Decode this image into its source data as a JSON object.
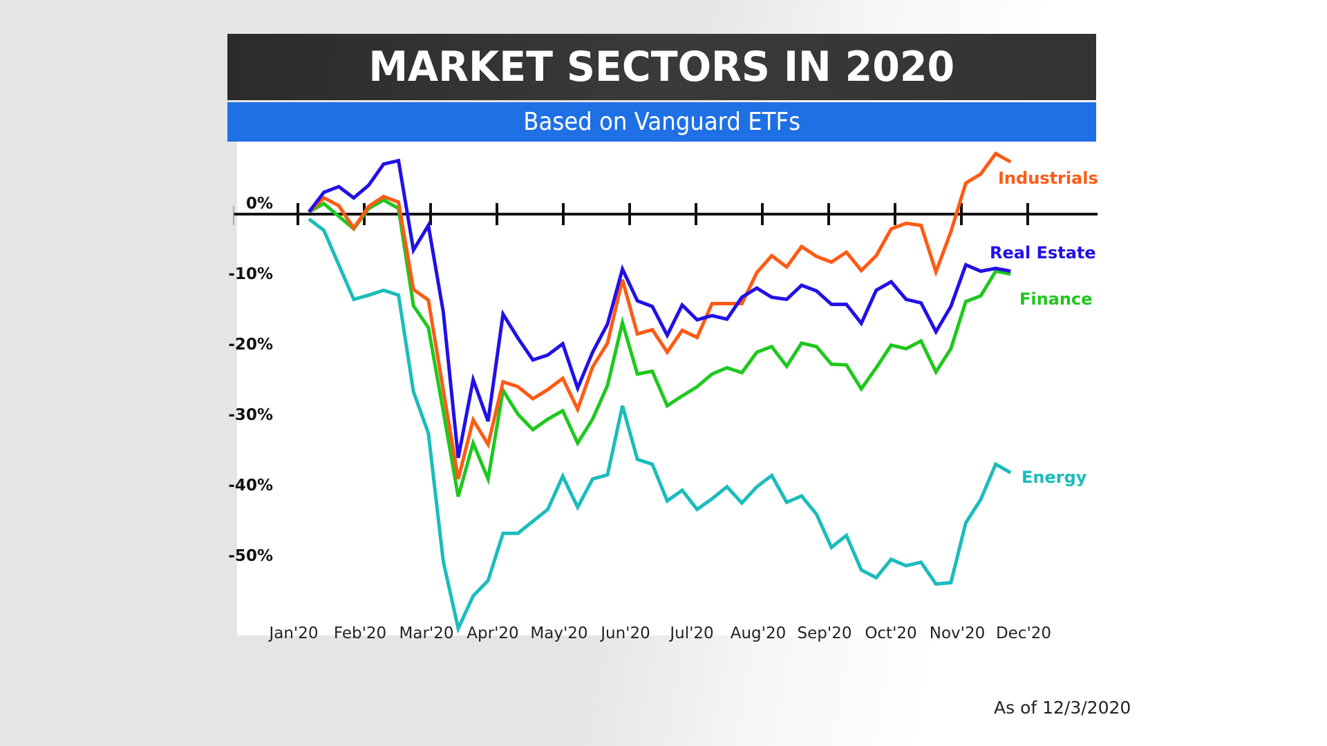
{
  "colors": {
    "title_bg": "#333333",
    "subtitle_bg": "#1f6fe5",
    "Industrials": "#ff5a14",
    "Real Estate": "#2210e6",
    "Finance": "#1ec81e",
    "Energy": "#1bbcbc",
    "grid": "#b4b4b4",
    "axis": "#111111"
  },
  "footer": {
    "as_of": "As of 12/3/2020"
  },
  "chart_data": {
    "type": "line",
    "title": "MARKET SECTORS IN 2020",
    "subtitle": "Based on Vanguard ETFs",
    "xlabel": "",
    "ylabel": "",
    "x_unit": "week of 2020 (approx. weekly closes, Jan through early Dec)",
    "ylim": [
      -60,
      10
    ],
    "y_ticks": [
      0,
      -10,
      -20,
      -30,
      -40,
      -50
    ],
    "y_tick_labels": [
      "0%",
      "-10%",
      "-20%",
      "-30%",
      "-40%",
      "-50%"
    ],
    "month_labels": [
      "Jan'20",
      "Feb'20",
      "Mar'20",
      "Apr'20",
      "May'20",
      "Jun'20",
      "Jul'20",
      "Aug'20",
      "Sep'20",
      "Oct'20",
      "Nov'20",
      "Dec'20"
    ],
    "grid": true,
    "legend": "end-of-line labels (right)",
    "series": [
      {
        "name": "Industrials",
        "values": [
          0.3,
          2.3,
          1.2,
          -2.0,
          1.1,
          2.5,
          1.7,
          -10.7,
          -12.2,
          -25.0,
          -37.6,
          -29.2,
          -32.7,
          -23.8,
          -24.5,
          -26.2,
          -24.9,
          -23.3,
          -27.7,
          -21.7,
          -18.3,
          -9.3,
          -17.0,
          -16.4,
          -19.6,
          -16.5,
          -17.5,
          -12.7,
          -12.7,
          -12.7,
          -8.3,
          -5.9,
          -7.5,
          -4.6,
          -6.0,
          -6.8,
          -5.4,
          -8.0,
          -5.9,
          -2.1,
          -1.3,
          -1.6,
          -8.2,
          -2.5,
          4.4,
          5.7,
          8.6,
          7.4
        ]
      },
      {
        "name": "Real Estate",
        "values": [
          0.3,
          3.1,
          3.9,
          2.3,
          4.1,
          7.1,
          7.6,
          -5.1,
          -1.6,
          -13.9,
          -34.6,
          -23.5,
          -29.4,
          -14.2,
          -17.6,
          -20.7,
          -20.0,
          -18.4,
          -24.7,
          -19.6,
          -15.6,
          -7.8,
          -12.3,
          -13.1,
          -17.2,
          -12.9,
          -15.0,
          -14.4,
          -14.9,
          -11.8,
          -10.5,
          -11.8,
          -12.1,
          -10.1,
          -10.9,
          -12.8,
          -12.8,
          -15.5,
          -10.8,
          -9.6,
          -12.1,
          -12.6,
          -16.7,
          -13.1,
          -7.2,
          -8.1,
          -7.7,
          -8.1
        ]
      },
      {
        "name": "Finance",
        "values": [
          0.3,
          1.5,
          -0.3,
          -2.1,
          0.8,
          2.0,
          0.8,
          -13.0,
          -16.1,
          -28.0,
          -40.1,
          -32.5,
          -37.6,
          -25.0,
          -28.4,
          -30.6,
          -29.1,
          -27.9,
          -32.5,
          -29.1,
          -24.3,
          -15.4,
          -22.7,
          -22.3,
          -27.2,
          -25.8,
          -24.5,
          -22.7,
          -21.8,
          -22.5,
          -19.6,
          -18.8,
          -21.6,
          -18.3,
          -18.8,
          -21.3,
          -21.4,
          -24.8,
          -21.8,
          -18.6,
          -19.1,
          -18.0,
          -22.4,
          -19.1,
          -12.4,
          -11.6,
          -8.1,
          -8.5
        ]
      },
      {
        "name": "Energy",
        "values": [
          -0.7,
          -2.3,
          -7.2,
          -12.1,
          -11.5,
          -10.8,
          -11.5,
          -25.2,
          -31.1,
          -49.3,
          -58.8,
          -54.2,
          -52.0,
          -45.3,
          -45.3,
          -43.6,
          -41.9,
          -37.2,
          -41.6,
          -37.6,
          -37.0,
          -27.2,
          -34.8,
          -35.5,
          -40.7,
          -39.2,
          -41.9,
          -40.4,
          -38.7,
          -41.0,
          -38.7,
          -37.1,
          -40.9,
          -40.0,
          -42.6,
          -47.3,
          -45.6,
          -50.5,
          -51.6,
          -49.0,
          -49.9,
          -49.4,
          -52.5,
          -52.3,
          -43.8,
          -40.5,
          -35.5,
          -36.7
        ]
      }
    ]
  }
}
